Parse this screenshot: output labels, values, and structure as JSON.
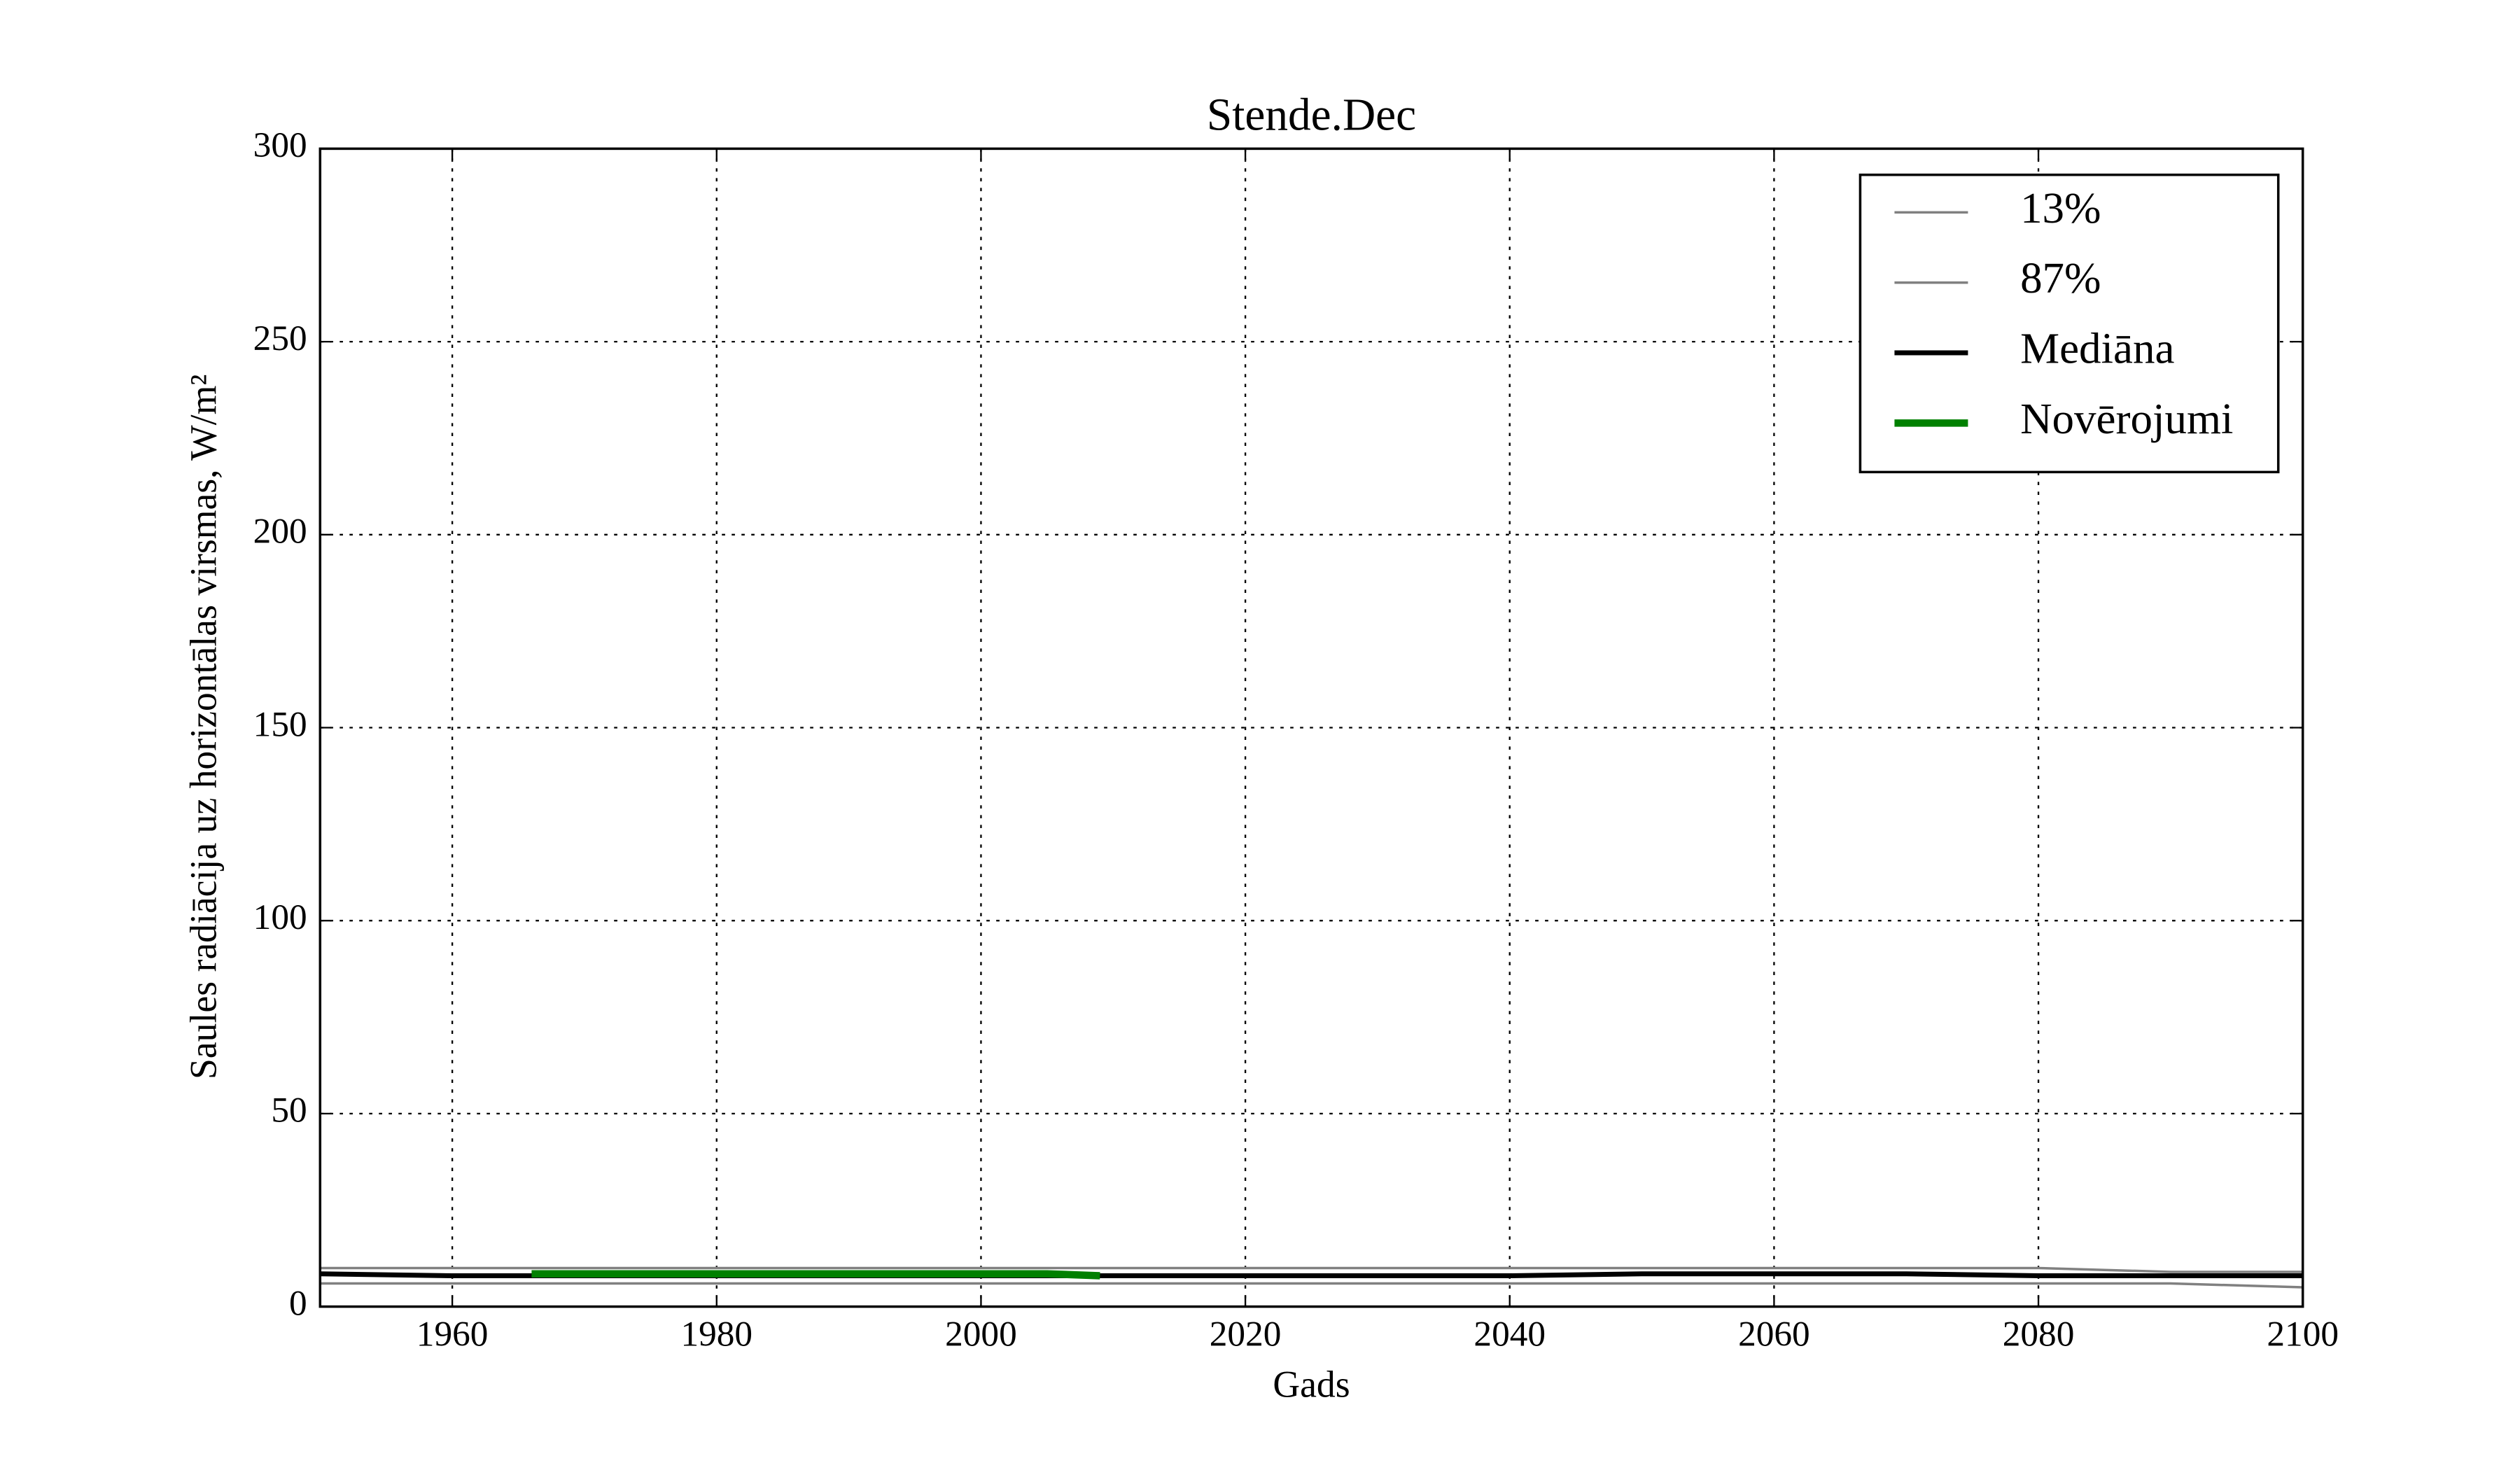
{
  "chart_data": {
    "type": "line",
    "title": "Stende.Dec",
    "xlabel": "Gads",
    "ylabel": "Saules radiācija uz horizontālas virsmas, W/m²",
    "xlim": [
      1950,
      2100
    ],
    "xticks": [
      1960,
      1980,
      2000,
      2020,
      2040,
      2060,
      2080,
      2100
    ],
    "ylim": [
      0,
      300
    ],
    "yticks": [
      0,
      50,
      100,
      150,
      200,
      250,
      300
    ],
    "grid": true,
    "legend": "upper right",
    "series": [
      {
        "name": "13%",
        "color": "#808080",
        "linewidth": 1.5,
        "x": [
          1950,
          1960,
          1970,
          1980,
          1990,
          2000,
          2010,
          2020,
          2030,
          2040,
          2050,
          2060,
          2070,
          2080,
          2090,
          2100
        ],
        "values": [
          6,
          6,
          6,
          6,
          6,
          6,
          6,
          6,
          6,
          6,
          6,
          6,
          6,
          6,
          6,
          5
        ]
      },
      {
        "name": "87%",
        "color": "#808080",
        "linewidth": 1.5,
        "x": [
          1950,
          1960,
          1970,
          1980,
          1990,
          2000,
          2010,
          2020,
          2030,
          2040,
          2050,
          2060,
          2070,
          2080,
          2090,
          2100
        ],
        "values": [
          10,
          10,
          10,
          10,
          10,
          10,
          10,
          10,
          10,
          10,
          10,
          10,
          10,
          10,
          9,
          9
        ]
      },
      {
        "name": "Mediāna",
        "color": "#000000",
        "linewidth": 3,
        "x": [
          1950,
          1960,
          1970,
          1980,
          1990,
          2000,
          2010,
          2020,
          2030,
          2040,
          2050,
          2060,
          2070,
          2080,
          2090,
          2100
        ],
        "values": [
          8.5,
          8,
          8,
          8,
          8,
          8,
          8,
          8,
          8,
          8,
          8.5,
          8.5,
          8.5,
          8,
          8,
          8
        ]
      },
      {
        "name": "Novērojumi",
        "color": "#008000",
        "linewidth": 4.5,
        "x": [
          1966,
          1975,
          1985,
          1995,
          2005,
          2009
        ],
        "values": [
          8.5,
          8.5,
          8.5,
          8.5,
          8.5,
          8
        ]
      }
    ]
  }
}
